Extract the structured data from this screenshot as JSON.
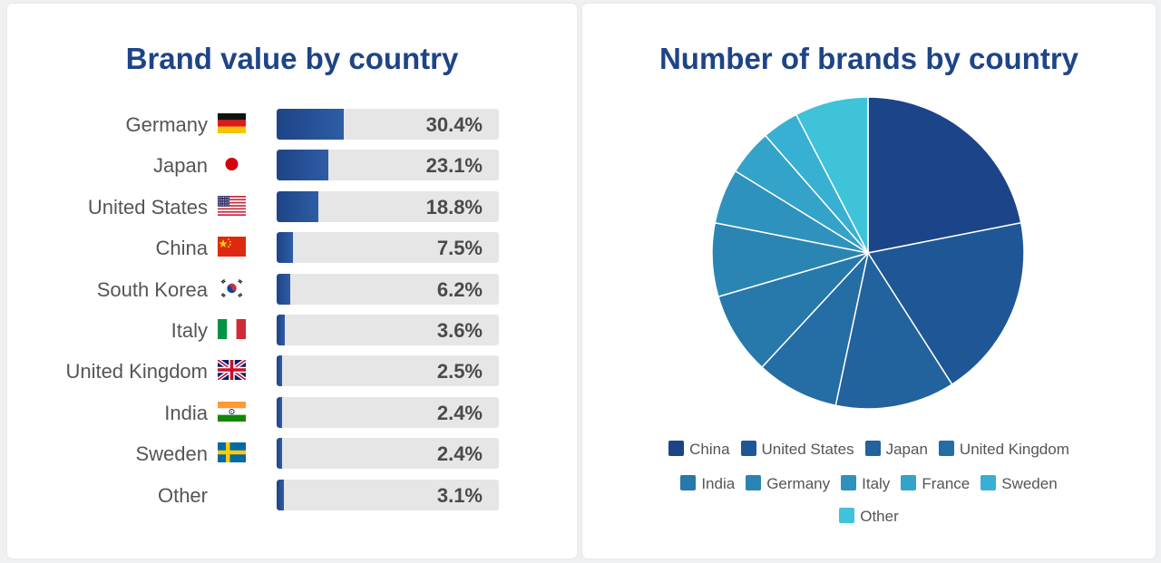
{
  "chart_data": [
    {
      "type": "bar",
      "orientation": "horizontal",
      "title": "Brand value by country",
      "categories": [
        "Germany",
        "Japan",
        "United States",
        "China",
        "South Korea",
        "Italy",
        "United Kingdom",
        "India",
        "Sweden",
        "Other"
      ],
      "values": [
        30.4,
        23.1,
        18.8,
        7.5,
        6.2,
        3.6,
        2.5,
        2.4,
        2.4,
        3.1
      ],
      "value_labels": [
        "30.4%",
        "23.1%",
        "18.8%",
        "7.5%",
        "6.2%",
        "3.6%",
        "2.5%",
        "2.4%",
        "2.4%",
        "3.1%"
      ],
      "xlim": [
        0,
        100
      ],
      "flags": [
        "germany-flag",
        "japan-flag",
        "united-states-flag",
        "china-flag",
        "south-korea-flag",
        "italy-flag",
        "united-kingdom-flag",
        "india-flag",
        "sweden-flag",
        ""
      ],
      "bar_color": "#1e4487",
      "track_color": "#e6e6e6"
    },
    {
      "type": "pie",
      "title": "Number of brands by country",
      "categories": [
        "China",
        "United States",
        "Japan",
        "United Kingdom",
        "India",
        "Germany",
        "Italy",
        "France",
        "Sweden",
        "Other"
      ],
      "values": [
        23,
        20,
        13,
        9,
        9,
        8,
        6,
        5,
        4,
        8
      ],
      "colors": [
        "#1b4489",
        "#1f5796",
        "#22629d",
        "#246da5",
        "#2679aa",
        "#2a85b3",
        "#2e92bd",
        "#33a3c9",
        "#37b0d3",
        "#3ec3d9"
      ],
      "legend_position": "bottom"
    }
  ]
}
